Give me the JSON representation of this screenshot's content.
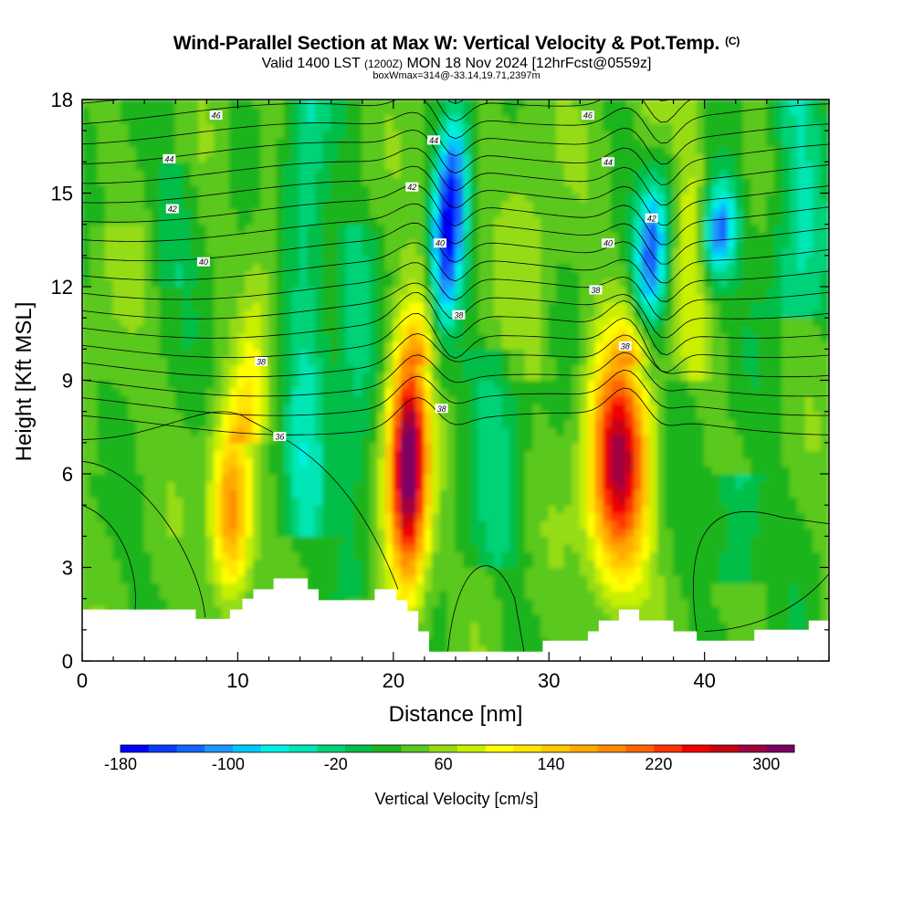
{
  "header": {
    "title": "Wind-Parallel Section at Max W: Vertical Velocity & Pot.Temp.",
    "copyright": "(C)",
    "valid_prefix": "Valid 1400 LST",
    "valid_utc": "(1200Z)",
    "valid_date": "MON 18 Nov 2024",
    "forecast": "[12hrFcst@0559z]",
    "boxinfo": "boxWmax=314@-33.14,19.71,2397m"
  },
  "colors": {
    "terrain": "#ffffff",
    "contour": "#000000",
    "palette": [
      "#0000ff",
      "#0a3cff",
      "#1464ff",
      "#1e96ff",
      "#00c8ff",
      "#00f0e6",
      "#00e6b4",
      "#00d278",
      "#00be46",
      "#1eb41e",
      "#5ac81e",
      "#96dc14",
      "#c8f000",
      "#ffff00",
      "#ffe600",
      "#ffc800",
      "#ffaa00",
      "#ff8c00",
      "#ff6400",
      "#ff3200",
      "#f00000",
      "#c80014",
      "#a00040",
      "#7d0064"
    ]
  },
  "chart_data": {
    "type": "heatmap",
    "xlabel": "Distance [nm]",
    "ylabel": "Height [Kft MSL]",
    "xlim": [
      0,
      48
    ],
    "ylim": [
      0,
      18
    ],
    "xticks": [
      0,
      10,
      20,
      30,
      40
    ],
    "yticks": [
      0,
      3,
      6,
      9,
      12,
      15,
      18
    ],
    "colorbar": {
      "label": "Vertical Velocity [cm/s]",
      "min": -180,
      "max": 300,
      "step": 20,
      "tick_labels": [
        -180,
        -100,
        -20,
        60,
        140,
        220,
        300
      ]
    },
    "field": {
      "name": "Vertical Velocity",
      "units": "cm/s",
      "max": 314,
      "features": [
        {
          "kind": "updraft",
          "x": 9.6,
          "z_range": [
            1.5,
            8.0
          ],
          "peak": 160
        },
        {
          "kind": "updraft",
          "x": 21.0,
          "z_range": [
            1.8,
            10.5
          ],
          "peak": 300
        },
        {
          "kind": "updraft",
          "x": 34.5,
          "z_range": [
            2.0,
            10.5
          ],
          "peak": 240
        },
        {
          "kind": "downdraft",
          "x": 23.5,
          "z_range": [
            10.0,
            18.0
          ],
          "peak": -180
        },
        {
          "kind": "downdraft",
          "x": 36.5,
          "z_range": [
            10.0,
            16.0
          ],
          "peak": -150
        },
        {
          "kind": "downdraft",
          "x": 41.0,
          "z_range": [
            12.0,
            15.5
          ],
          "peak": -120
        }
      ]
    },
    "contours": {
      "name": "Pot.Temp.",
      "labels": [
        {
          "text": "46",
          "x": 8.6,
          "y": 17.5
        },
        {
          "text": "44",
          "x": 5.6,
          "y": 16.1
        },
        {
          "text": "42",
          "x": 5.8,
          "y": 14.5
        },
        {
          "text": "40",
          "x": 7.8,
          "y": 12.8
        },
        {
          "text": "38",
          "x": 11.5,
          "y": 9.6
        },
        {
          "text": "36",
          "x": 12.7,
          "y": 7.2
        },
        {
          "text": "44",
          "x": 22.6,
          "y": 16.7
        },
        {
          "text": "42",
          "x": 21.2,
          "y": 15.2
        },
        {
          "text": "40",
          "x": 23.0,
          "y": 13.4
        },
        {
          "text": "38",
          "x": 24.2,
          "y": 11.1
        },
        {
          "text": "38",
          "x": 23.1,
          "y": 8.1
        },
        {
          "text": "46",
          "x": 32.5,
          "y": 17.5
        },
        {
          "text": "44",
          "x": 33.8,
          "y": 16.0
        },
        {
          "text": "42",
          "x": 36.6,
          "y": 14.2
        },
        {
          "text": "40",
          "x": 33.8,
          "y": 13.4
        },
        {
          "text": "38",
          "x": 33.0,
          "y": 11.9
        },
        {
          "text": "38",
          "x": 34.9,
          "y": 10.1
        }
      ]
    },
    "terrain": [
      [
        0,
        1.65
      ],
      [
        7.3,
        1.65
      ],
      [
        7.3,
        1.35
      ],
      [
        9.5,
        1.35
      ],
      [
        9.5,
        1.65
      ],
      [
        10.3,
        1.65
      ],
      [
        10.3,
        2.0
      ],
      [
        11.0,
        2.0
      ],
      [
        11.0,
        2.3
      ],
      [
        12.3,
        2.3
      ],
      [
        12.3,
        2.65
      ],
      [
        14.5,
        2.65
      ],
      [
        14.5,
        2.3
      ],
      [
        15.2,
        2.3
      ],
      [
        15.2,
        1.95
      ],
      [
        18.8,
        1.95
      ],
      [
        18.8,
        2.3
      ],
      [
        20.2,
        2.3
      ],
      [
        20.2,
        1.95
      ],
      [
        20.9,
        1.95
      ],
      [
        20.9,
        1.6
      ],
      [
        21.6,
        1.6
      ],
      [
        21.6,
        0.95
      ],
      [
        22.3,
        0.95
      ],
      [
        22.3,
        0.3
      ],
      [
        29.6,
        0.3
      ],
      [
        29.6,
        0.65
      ],
      [
        32.5,
        0.65
      ],
      [
        32.5,
        0.95
      ],
      [
        33.2,
        0.95
      ],
      [
        33.2,
        1.3
      ],
      [
        34.5,
        1.3
      ],
      [
        34.5,
        1.65
      ],
      [
        35.8,
        1.65
      ],
      [
        35.8,
        1.3
      ],
      [
        38.0,
        1.3
      ],
      [
        38.0,
        0.95
      ],
      [
        39.5,
        0.95
      ],
      [
        39.5,
        0.65
      ],
      [
        43.2,
        0.65
      ],
      [
        43.2,
        1.0
      ],
      [
        46.7,
        1.0
      ],
      [
        46.7,
        1.3
      ],
      [
        48,
        1.3
      ]
    ]
  }
}
